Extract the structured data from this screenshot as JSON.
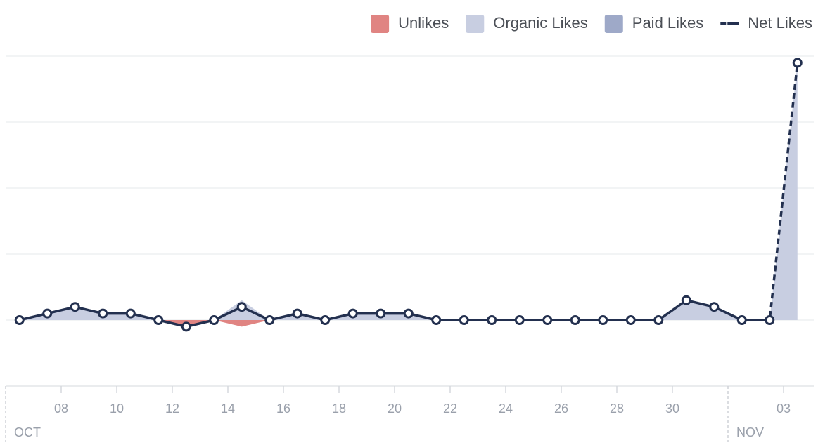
{
  "chart_data": {
    "type": "line",
    "categories": [
      null,
      null,
      "08",
      null,
      "10",
      null,
      "12",
      null,
      "14",
      null,
      "16",
      null,
      "18",
      null,
      "20",
      null,
      "22",
      null,
      "24",
      null,
      "26",
      null,
      "28",
      null,
      "30",
      null,
      null,
      null,
      "03"
    ],
    "x_groups": [
      {
        "label": "OCT",
        "start": 0
      },
      {
        "label": "NOV",
        "start": 26
      }
    ],
    "series": [
      {
        "name": "Unlikes",
        "color": "#e08482",
        "style": "area",
        "values": [
          0,
          0,
          0,
          0,
          0,
          0,
          -1,
          0,
          -1,
          0,
          0,
          0,
          0,
          0,
          0,
          0,
          0,
          0,
          0,
          0,
          0,
          0,
          0,
          0,
          0,
          0,
          0,
          0,
          0
        ]
      },
      {
        "name": "Organic Likes",
        "color": "#c8cee1",
        "style": "area",
        "values": [
          0,
          1,
          2,
          1,
          1,
          0,
          0,
          0,
          3,
          0,
          1,
          0,
          1,
          1,
          1,
          0,
          0,
          0,
          0,
          0,
          0,
          0,
          0,
          0,
          3,
          2,
          0,
          0,
          39
        ]
      },
      {
        "name": "Paid Likes",
        "color": "#9ea9c8",
        "style": "area",
        "values": [
          0,
          0,
          0,
          0,
          0,
          0,
          0,
          0,
          0,
          0,
          0,
          0,
          0,
          0,
          0,
          0,
          0,
          0,
          0,
          0,
          0,
          0,
          0,
          0,
          0,
          0,
          0,
          0,
          0
        ]
      },
      {
        "name": "Net Likes",
        "color": "#23304f",
        "style": "line",
        "values": [
          0,
          1,
          2,
          1,
          1,
          0,
          -1,
          0,
          2,
          0,
          1,
          0,
          1,
          1,
          1,
          0,
          0,
          0,
          0,
          0,
          0,
          0,
          0,
          0,
          3,
          2,
          0,
          0,
          39
        ]
      }
    ],
    "ylim": [
      -10,
      40
    ],
    "yticks": [
      -10,
      0,
      10,
      20,
      30,
      40
    ],
    "grid": true
  }
}
